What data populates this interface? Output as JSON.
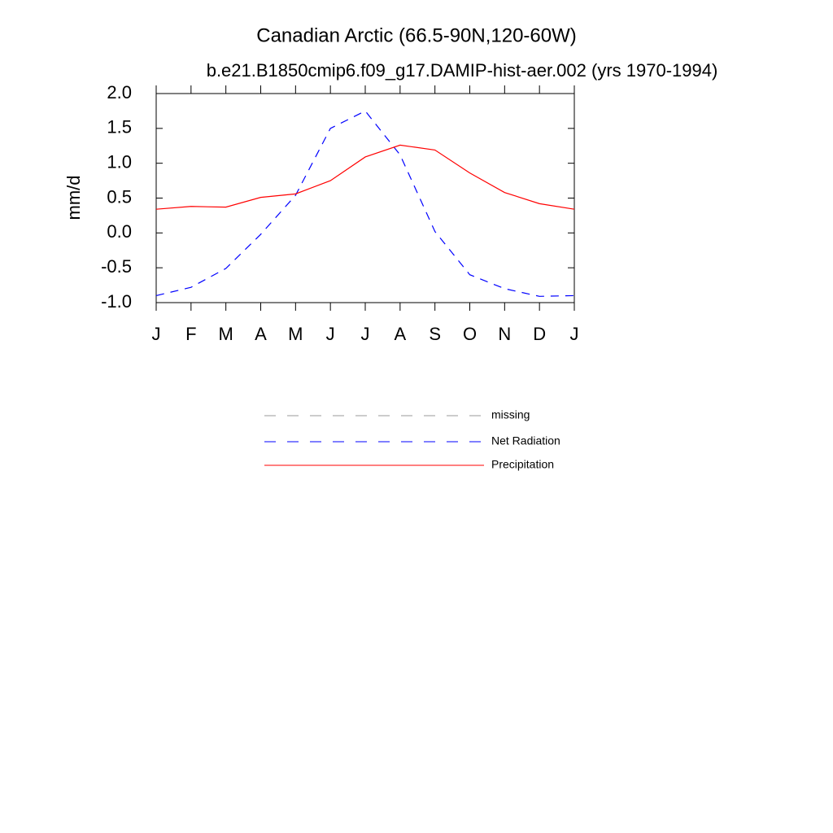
{
  "chart_data": {
    "type": "line",
    "title": "Canadian Arctic (66.5-90N,120-60W)",
    "subtitle": "b.e21.B1850cmip6.f09_g17.DAMIP-hist-aer.002 (yrs 1970-1994)",
    "y_label": "mm/d",
    "categories": [
      "J",
      "F",
      "M",
      "A",
      "M",
      "J",
      "J",
      "A",
      "S",
      "O",
      "N",
      "D",
      "J"
    ],
    "series": [
      {
        "name": "missing",
        "color": "#999999",
        "dashed": true,
        "values": [
          null,
          null,
          null,
          null,
          null,
          null,
          null,
          null,
          null,
          null,
          null,
          null,
          null
        ]
      },
      {
        "name": "Net Radiation",
        "color": "#0000ff",
        "dashed": true,
        "values": [
          -0.9,
          -0.78,
          -0.51,
          -0.02,
          0.54,
          1.5,
          1.75,
          1.12,
          0.02,
          -0.6,
          -0.8,
          -0.91,
          -0.9
        ]
      },
      {
        "name": "Precipitation",
        "color": "#ff0000",
        "dashed": false,
        "values": [
          0.34,
          0.38,
          0.37,
          0.51,
          0.56,
          0.75,
          1.09,
          1.26,
          1.19,
          0.86,
          0.58,
          0.42,
          0.34
        ]
      }
    ],
    "ylim": [
      -1.0,
      2.0
    ],
    "yticks": [
      {
        "value": 2,
        "label": "2.0"
      },
      1.5,
      {
        "value": 1,
        "label": "1.0"
      },
      0.5,
      {
        "value": 0,
        "label": "0.0"
      },
      -0.5,
      {
        "value": -1,
        "label": "-1.0"
      }
    ]
  }
}
